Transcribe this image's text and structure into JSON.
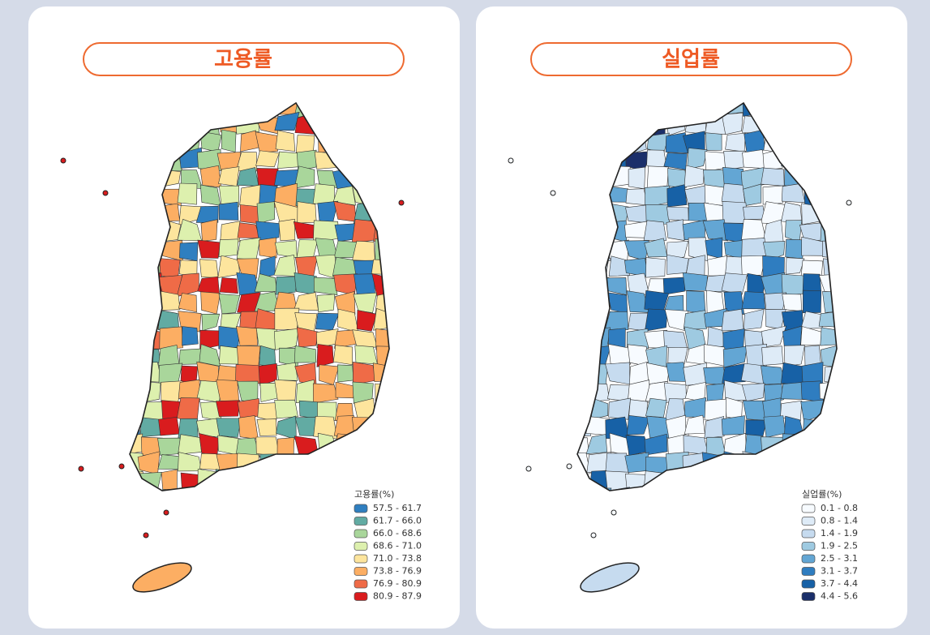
{
  "panels": [
    {
      "title": "고용률",
      "legend_title": "고용률(%)",
      "legend": [
        {
          "label": "57.5 - 61.7",
          "color": "#2f7fc0"
        },
        {
          "label": "61.7 - 66.0",
          "color": "#62aba3"
        },
        {
          "label": "66.0 - 68.6",
          "color": "#a9d69b"
        },
        {
          "label": "68.6 - 71.0",
          "color": "#ddf0ae"
        },
        {
          "label": "71.0 - 73.8",
          "color": "#fde59d"
        },
        {
          "label": "73.8 - 76.9",
          "color": "#fcae63"
        },
        {
          "label": "76.9 - 80.9",
          "color": "#ef6b47"
        },
        {
          "label": "80.9 - 87.9",
          "color": "#d91c1e"
        }
      ]
    },
    {
      "title": "실업률",
      "legend_title": "실업률(%)",
      "legend": [
        {
          "label": "0.1 - 0.8",
          "color": "#f7fbff"
        },
        {
          "label": "0.8 - 1.4",
          "color": "#deebf7"
        },
        {
          "label": "1.4 - 1.9",
          "color": "#c6dbef"
        },
        {
          "label": "1.9 - 2.5",
          "color": "#9ecae1"
        },
        {
          "label": "2.5 - 3.1",
          "color": "#63a6d4"
        },
        {
          "label": "3.1 - 3.7",
          "color": "#2f7dc0"
        },
        {
          "label": "3.7 - 4.4",
          "color": "#1761a6"
        },
        {
          "label": "4.4 - 5.6",
          "color": "#1b2f6a"
        }
      ]
    }
  ]
}
